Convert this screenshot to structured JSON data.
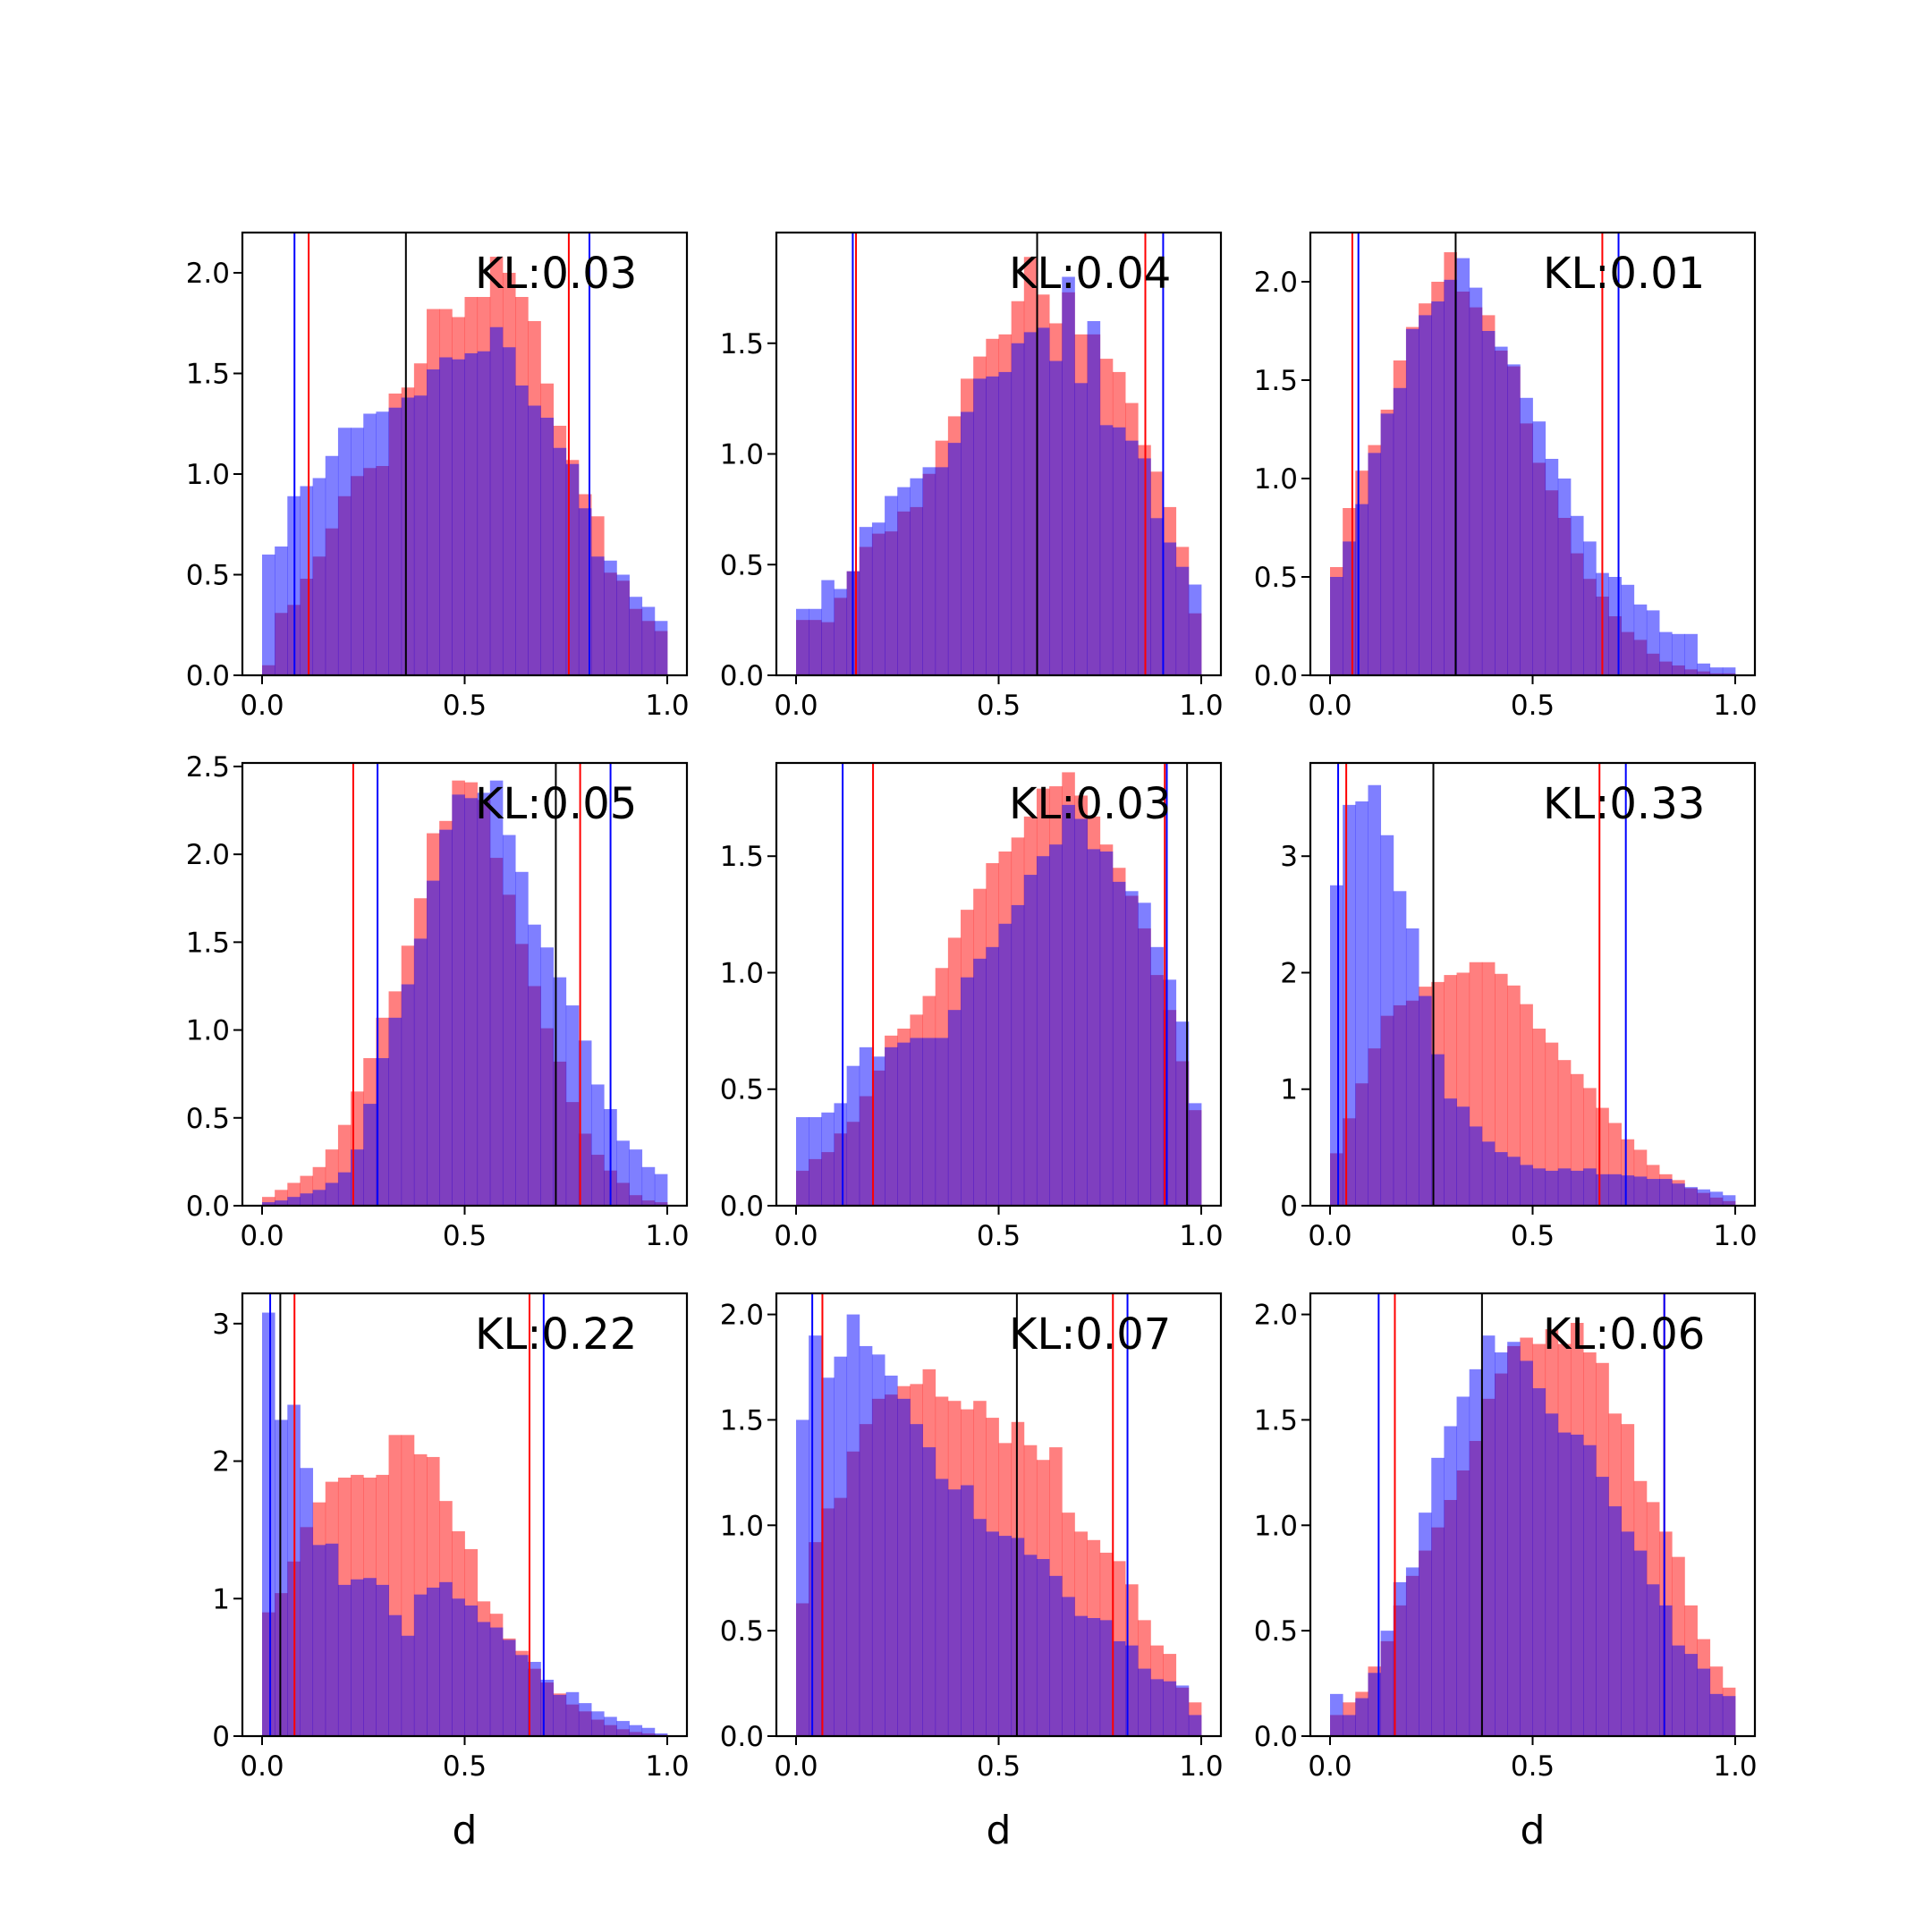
{
  "chart_data": [
    {
      "type": "bar",
      "xlim": [
        0,
        1
      ],
      "ylim": [
        0,
        2.2
      ],
      "xticks": [
        "0.0",
        "0.5",
        "1.0"
      ],
      "yticks": [
        {
          "v": 0,
          "label": "0.0"
        },
        {
          "v": 0.5,
          "label": "0.5"
        },
        {
          "v": 1.0,
          "label": "1.0"
        },
        {
          "v": 1.5,
          "label": "1.5"
        },
        {
          "v": 2.0,
          "label": "2.0"
        }
      ],
      "annotation": "KL:0.03",
      "xlabel": "",
      "red_values": [
        0.05,
        0.31,
        0.35,
        0.48,
        0.59,
        0.73,
        0.89,
        0.99,
        1.03,
        1.04,
        1.4,
        1.43,
        1.55,
        1.82,
        1.82,
        1.78,
        1.88,
        1.88,
        2.08,
        2.0,
        1.88,
        1.76,
        1.45,
        1.24,
        1.07,
        0.9,
        0.79,
        0.51,
        0.47,
        0.33,
        0.27,
        0.22
      ],
      "blue_values": [
        0.6,
        0.64,
        0.89,
        0.94,
        0.98,
        1.09,
        1.23,
        1.23,
        1.3,
        1.31,
        1.33,
        1.38,
        1.39,
        1.52,
        1.58,
        1.57,
        1.6,
        1.61,
        1.73,
        1.63,
        1.44,
        1.34,
        1.28,
        1.13,
        1.05,
        0.83,
        0.59,
        0.57,
        0.5,
        0.39,
        0.34,
        0.27
      ],
      "vlines": [
        {
          "x": 0.08,
          "color": "#0000ff"
        },
        {
          "x": 0.115,
          "color": "#ff0000"
        },
        {
          "x": 0.355,
          "color": "#000000"
        },
        {
          "x": 0.757,
          "color": "#ff0000"
        },
        {
          "x": 0.808,
          "color": "#0000ff"
        }
      ]
    },
    {
      "type": "bar",
      "xlim": [
        0,
        1
      ],
      "ylim": [
        0,
        2.0
      ],
      "xticks": [
        "0.0",
        "0.5",
        "1.0"
      ],
      "yticks": [
        {
          "v": 0,
          "label": "0.0"
        },
        {
          "v": 0.5,
          "label": "0.5"
        },
        {
          "v": 1.0,
          "label": "1.0"
        },
        {
          "v": 1.5,
          "label": "1.5"
        }
      ],
      "annotation": "KL:0.04",
      "xlabel": "",
      "red_values": [
        0.25,
        0.25,
        0.24,
        0.35,
        0.47,
        0.58,
        0.64,
        0.65,
        0.74,
        0.76,
        0.91,
        1.06,
        1.17,
        1.34,
        1.44,
        1.52,
        1.54,
        1.69,
        1.89,
        1.72,
        1.59,
        1.73,
        1.54,
        1.54,
        1.43,
        1.37,
        1.23,
        1.04,
        0.92,
        0.76,
        0.58,
        0.28
      ],
      "blue_values": [
        0.3,
        0.3,
        0.43,
        0.39,
        0.47,
        0.67,
        0.69,
        0.81,
        0.85,
        0.89,
        0.94,
        0.94,
        1.05,
        1.19,
        1.34,
        1.35,
        1.37,
        1.5,
        1.55,
        1.57,
        1.42,
        1.8,
        1.32,
        1.6,
        1.13,
        1.12,
        1.06,
        0.98,
        0.71,
        0.6,
        0.49,
        0.41
      ],
      "vlines": [
        {
          "x": 0.14,
          "color": "#0000ff"
        },
        {
          "x": 0.148,
          "color": "#ff0000"
        },
        {
          "x": 0.595,
          "color": "#000000"
        },
        {
          "x": 0.862,
          "color": "#ff0000"
        },
        {
          "x": 0.906,
          "color": "#0000ff"
        }
      ]
    },
    {
      "type": "bar",
      "xlim": [
        0,
        1
      ],
      "ylim": [
        0,
        2.25
      ],
      "xticks": [
        "0.0",
        "0.5",
        "1.0"
      ],
      "yticks": [
        {
          "v": 0,
          "label": "0.0"
        },
        {
          "v": 0.5,
          "label": "0.5"
        },
        {
          "v": 1.0,
          "label": "1.0"
        },
        {
          "v": 1.5,
          "label": "1.5"
        },
        {
          "v": 2.0,
          "label": "2.0"
        }
      ],
      "annotation": "KL:0.01",
      "xlabel": "",
      "red_values": [
        0.55,
        0.85,
        1.04,
        1.17,
        1.35,
        1.6,
        1.77,
        1.89,
        2.0,
        2.15,
        1.95,
        1.87,
        1.83,
        1.65,
        1.57,
        1.28,
        1.08,
        0.94,
        0.8,
        0.62,
        0.49,
        0.4,
        0.3,
        0.22,
        0.18,
        0.11,
        0.07,
        0.05,
        0.03,
        0.02,
        0.01,
        0.01
      ],
      "blue_values": [
        0.5,
        0.68,
        0.87,
        1.13,
        1.33,
        1.46,
        1.76,
        1.83,
        1.9,
        2.01,
        2.12,
        1.97,
        1.75,
        1.67,
        1.58,
        1.41,
        1.29,
        1.1,
        1.0,
        0.81,
        0.68,
        0.52,
        0.5,
        0.46,
        0.36,
        0.33,
        0.22,
        0.21,
        0.21,
        0.06,
        0.04,
        0.04
      ],
      "vlines": [
        {
          "x": 0.055,
          "color": "#ff0000"
        },
        {
          "x": 0.07,
          "color": "#0000ff"
        },
        {
          "x": 0.31,
          "color": "#000000"
        },
        {
          "x": 0.672,
          "color": "#ff0000"
        },
        {
          "x": 0.712,
          "color": "#0000ff"
        }
      ]
    },
    {
      "type": "bar",
      "xlim": [
        0,
        1
      ],
      "ylim": [
        0,
        2.52
      ],
      "xticks": [
        "0.0",
        "0.5",
        "1.0"
      ],
      "yticks": [
        {
          "v": 0,
          "label": "0.0"
        },
        {
          "v": 0.5,
          "label": "0.5"
        },
        {
          "v": 1.0,
          "label": "1.0"
        },
        {
          "v": 1.5,
          "label": "1.5"
        },
        {
          "v": 2.0,
          "label": "2.0"
        },
        {
          "v": 2.5,
          "label": "2.5"
        }
      ],
      "annotation": "KL:0.05",
      "xlabel": "",
      "red_values": [
        0.05,
        0.09,
        0.13,
        0.17,
        0.22,
        0.32,
        0.46,
        0.65,
        0.84,
        1.07,
        1.22,
        1.48,
        1.75,
        2.12,
        2.19,
        2.42,
        2.41,
        2.31,
        1.98,
        1.77,
        1.49,
        1.25,
        1.01,
        0.82,
        0.59,
        0.41,
        0.29,
        0.2,
        0.13,
        0.06,
        0.03,
        0.02
      ],
      "blue_values": [
        0.02,
        0.03,
        0.05,
        0.07,
        0.09,
        0.13,
        0.19,
        0.32,
        0.58,
        0.84,
        1.07,
        1.26,
        1.52,
        1.85,
        2.14,
        2.34,
        2.32,
        2.35,
        2.42,
        2.11,
        1.9,
        1.6,
        1.47,
        1.3,
        1.14,
        0.94,
        0.69,
        0.55,
        0.37,
        0.32,
        0.22,
        0.18
      ],
      "vlines": [
        {
          "x": 0.225,
          "color": "#ff0000"
        },
        {
          "x": 0.285,
          "color": "#0000ff"
        },
        {
          "x": 0.725,
          "color": "#000000"
        },
        {
          "x": 0.785,
          "color": "#ff0000"
        },
        {
          "x": 0.86,
          "color": "#0000ff"
        }
      ]
    },
    {
      "type": "bar",
      "xlim": [
        0,
        1
      ],
      "ylim": [
        0,
        1.9
      ],
      "xticks": [
        "0.0",
        "0.5",
        "1.0"
      ],
      "yticks": [
        {
          "v": 0,
          "label": "0.0"
        },
        {
          "v": 0.5,
          "label": "0.5"
        },
        {
          "v": 1.0,
          "label": "1.0"
        },
        {
          "v": 1.5,
          "label": "1.5"
        }
      ],
      "annotation": "KL:0.03",
      "xlabel": "",
      "red_values": [
        0.15,
        0.2,
        0.23,
        0.31,
        0.36,
        0.47,
        0.58,
        0.73,
        0.76,
        0.82,
        0.9,
        1.02,
        1.15,
        1.27,
        1.36,
        1.47,
        1.52,
        1.58,
        1.67,
        1.79,
        1.8,
        1.86,
        1.76,
        1.67,
        1.55,
        1.45,
        1.33,
        1.19,
        0.99,
        0.84,
        0.62,
        0.41
      ],
      "blue_values": [
        0.38,
        0.38,
        0.4,
        0.44,
        0.6,
        0.68,
        0.64,
        0.68,
        0.7,
        0.72,
        0.72,
        0.72,
        0.84,
        0.98,
        1.06,
        1.11,
        1.21,
        1.29,
        1.42,
        1.5,
        1.55,
        1.72,
        1.66,
        1.53,
        1.52,
        1.39,
        1.35,
        1.3,
        1.11,
        0.97,
        0.79,
        0.44
      ],
      "vlines": [
        {
          "x": 0.115,
          "color": "#0000ff"
        },
        {
          "x": 0.19,
          "color": "#ff0000"
        },
        {
          "x": 0.91,
          "color": "#ff0000"
        },
        {
          "x": 0.915,
          "color": "#0000ff"
        },
        {
          "x": 0.965,
          "color": "#000000"
        }
      ]
    },
    {
      "type": "bar",
      "xlim": [
        0,
        1
      ],
      "ylim": [
        0,
        3.8
      ],
      "xticks": [
        "0.0",
        "0.5",
        "1.0"
      ],
      "yticks": [
        {
          "v": 0,
          "label": "0"
        },
        {
          "v": 1,
          "label": "1"
        },
        {
          "v": 2,
          "label": "2"
        },
        {
          "v": 3,
          "label": "3"
        }
      ],
      "annotation": "KL:0.33",
      "xlabel": "",
      "red_values": [
        0.45,
        0.75,
        1.05,
        1.35,
        1.63,
        1.72,
        1.76,
        1.88,
        1.92,
        1.98,
        2.0,
        2.09,
        2.09,
        1.99,
        1.89,
        1.73,
        1.52,
        1.4,
        1.25,
        1.13,
        1.01,
        0.84,
        0.71,
        0.57,
        0.48,
        0.35,
        0.27,
        0.22,
        0.15,
        0.11,
        0.07,
        0.04
      ],
      "blue_values": [
        2.75,
        3.44,
        3.47,
        3.61,
        3.18,
        2.7,
        2.38,
        1.8,
        1.3,
        0.92,
        0.85,
        0.68,
        0.55,
        0.46,
        0.42,
        0.35,
        0.32,
        0.3,
        0.32,
        0.3,
        0.32,
        0.27,
        0.27,
        0.26,
        0.25,
        0.23,
        0.23,
        0.19,
        0.16,
        0.14,
        0.12,
        0.09
      ],
      "vlines": [
        {
          "x": 0.02,
          "color": "#0000ff"
        },
        {
          "x": 0.04,
          "color": "#ff0000"
        },
        {
          "x": 0.255,
          "color": "#000000"
        },
        {
          "x": 0.665,
          "color": "#ff0000"
        },
        {
          "x": 0.73,
          "color": "#0000ff"
        }
      ]
    },
    {
      "type": "bar",
      "xlim": [
        0,
        1
      ],
      "ylim": [
        0,
        3.22
      ],
      "xticks": [
        "0.0",
        "0.5",
        "1.0"
      ],
      "yticks": [
        {
          "v": 0,
          "label": "0"
        },
        {
          "v": 1,
          "label": "1"
        },
        {
          "v": 2,
          "label": "2"
        },
        {
          "v": 3,
          "label": "3"
        }
      ],
      "annotation": "KL:0.22",
      "xlabel": "d",
      "red_values": [
        0.9,
        1.04,
        1.27,
        1.52,
        1.7,
        1.85,
        1.88,
        1.9,
        1.88,
        1.9,
        2.19,
        2.19,
        2.05,
        2.03,
        1.71,
        1.49,
        1.36,
        0.98,
        0.89,
        0.71,
        0.62,
        0.49,
        0.39,
        0.31,
        0.23,
        0.18,
        0.12,
        0.08,
        0.05,
        0.03,
        0.02,
        0.01
      ],
      "blue_values": [
        3.08,
        2.3,
        2.41,
        1.95,
        1.39,
        1.4,
        1.1,
        1.14,
        1.15,
        1.1,
        0.88,
        0.73,
        1.03,
        1.08,
        1.12,
        1.0,
        0.95,
        0.83,
        0.79,
        0.7,
        0.59,
        0.54,
        0.41,
        0.3,
        0.32,
        0.24,
        0.18,
        0.14,
        0.11,
        0.08,
        0.06,
        0.02
      ],
      "vlines": [
        {
          "x": 0.02,
          "color": "#0000ff"
        },
        {
          "x": 0.045,
          "color": "#000000"
        },
        {
          "x": 0.08,
          "color": "#ff0000"
        },
        {
          "x": 0.66,
          "color": "#ff0000"
        },
        {
          "x": 0.695,
          "color": "#0000ff"
        }
      ]
    },
    {
      "type": "bar",
      "xlim": [
        0,
        1
      ],
      "ylim": [
        0,
        2.1
      ],
      "xticks": [
        "0.0",
        "0.5",
        "1.0"
      ],
      "yticks": [
        {
          "v": 0,
          "label": "0.0"
        },
        {
          "v": 0.5,
          "label": "0.5"
        },
        {
          "v": 1.0,
          "label": "1.0"
        },
        {
          "v": 1.5,
          "label": "1.5"
        },
        {
          "v": 2.0,
          "label": "2.0"
        }
      ],
      "annotation": "KL:0.07",
      "xlabel": "d",
      "red_values": [
        0.63,
        0.92,
        1.08,
        1.13,
        1.35,
        1.48,
        1.6,
        1.62,
        1.66,
        1.67,
        1.74,
        1.61,
        1.59,
        1.55,
        1.59,
        1.51,
        1.39,
        1.49,
        1.38,
        1.31,
        1.37,
        1.06,
        0.97,
        0.93,
        0.87,
        0.83,
        0.72,
        0.55,
        0.43,
        0.39,
        0.23,
        0.16
      ],
      "blue_values": [
        1.5,
        1.9,
        1.7,
        1.8,
        2.0,
        1.85,
        1.81,
        1.71,
        1.6,
        1.48,
        1.37,
        1.22,
        1.17,
        1.19,
        1.03,
        0.97,
        0.95,
        0.94,
        0.86,
        0.84,
        0.76,
        0.66,
        0.57,
        0.56,
        0.55,
        0.45,
        0.43,
        0.32,
        0.27,
        0.26,
        0.24,
        0.1
      ],
      "vlines": [
        {
          "x": 0.04,
          "color": "#0000ff"
        },
        {
          "x": 0.065,
          "color": "#ff0000"
        },
        {
          "x": 0.545,
          "color": "#000000"
        },
        {
          "x": 0.782,
          "color": "#ff0000"
        },
        {
          "x": 0.818,
          "color": "#0000ff"
        }
      ]
    },
    {
      "type": "bar",
      "xlim": [
        0,
        1
      ],
      "ylim": [
        0,
        2.1
      ],
      "xticks": [
        "0.0",
        "0.5",
        "1.0"
      ],
      "yticks": [
        {
          "v": 0,
          "label": "0.0"
        },
        {
          "v": 0.5,
          "label": "0.5"
        },
        {
          "v": 1.0,
          "label": "1.0"
        },
        {
          "v": 1.5,
          "label": "1.5"
        },
        {
          "v": 2.0,
          "label": "2.0"
        }
      ],
      "annotation": "KL:0.06",
      "xlabel": "d",
      "red_values": [
        0.1,
        0.16,
        0.21,
        0.33,
        0.45,
        0.62,
        0.76,
        0.88,
        0.99,
        1.12,
        1.26,
        1.4,
        1.6,
        1.72,
        1.85,
        1.89,
        1.86,
        1.93,
        1.86,
        1.96,
        1.82,
        1.77,
        1.53,
        1.48,
        1.21,
        1.11,
        0.97,
        0.85,
        0.62,
        0.46,
        0.33,
        0.23
      ],
      "blue_values": [
        0.2,
        0.1,
        0.18,
        0.3,
        0.5,
        0.73,
        0.8,
        1.06,
        1.32,
        1.47,
        1.61,
        1.74,
        1.9,
        1.82,
        1.87,
        1.78,
        1.65,
        1.53,
        1.44,
        1.43,
        1.38,
        1.23,
        1.09,
        0.97,
        0.88,
        0.72,
        0.62,
        0.43,
        0.39,
        0.32,
        0.2,
        0.19
      ],
      "vlines": [
        {
          "x": 0.12,
          "color": "#0000ff"
        },
        {
          "x": 0.16,
          "color": "#ff0000"
        },
        {
          "x": 0.375,
          "color": "#000000"
        },
        {
          "x": 0.825,
          "color": "#ff0000"
        },
        {
          "x": 0.825,
          "color": "#0000ff"
        }
      ]
    }
  ],
  "colors": {
    "red_hist": "#ff0000",
    "blue_hist": "#0000ff",
    "hist_opacity": 0.5
  }
}
